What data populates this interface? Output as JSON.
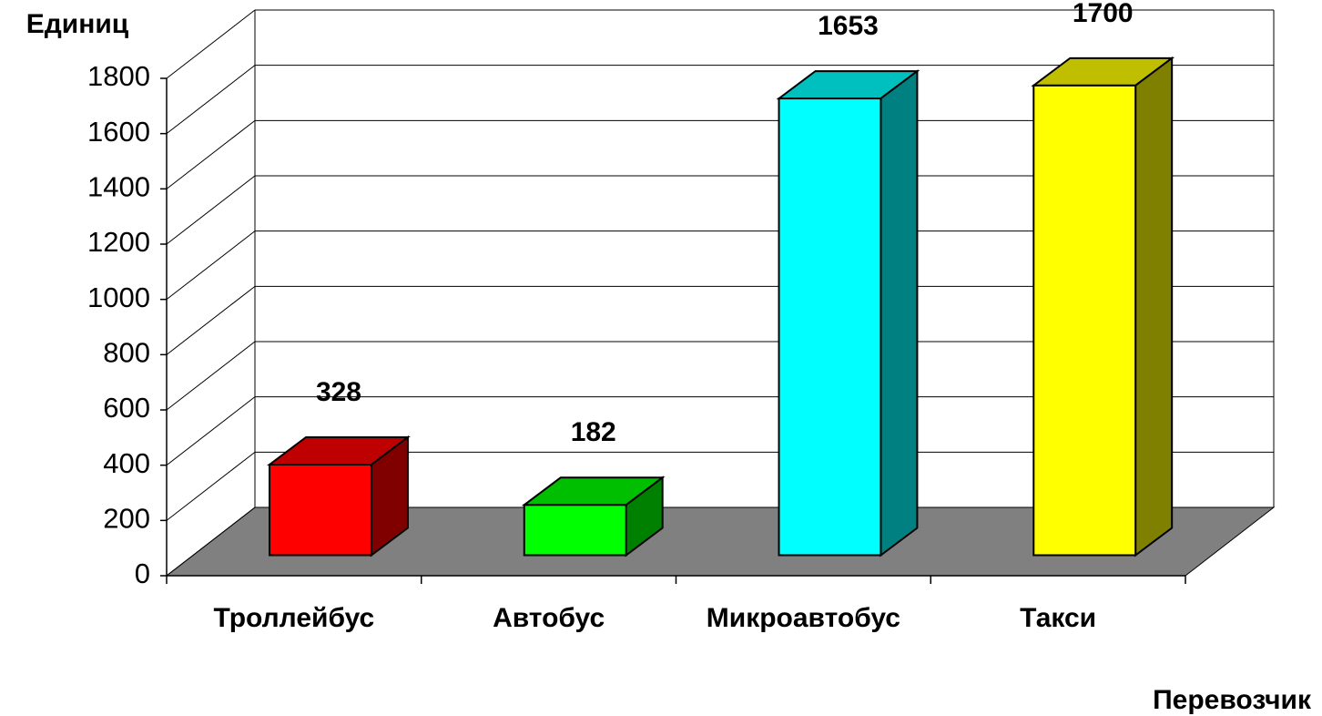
{
  "chart_data": {
    "type": "bar3d",
    "y_label": "Единиц",
    "x_label": "Перевозчик",
    "categories": [
      "Троллейбус",
      "Автобус",
      "Микроавтобус",
      "Такси"
    ],
    "values": [
      328,
      182,
      1653,
      1700
    ],
    "colors": [
      "#ff0000",
      "#00ff00",
      "#00ffff",
      "#ffff00"
    ],
    "ylim": [
      0,
      1800
    ],
    "yticks": [
      0,
      200,
      400,
      600,
      800,
      1000,
      1200,
      1400,
      1600,
      1800
    ],
    "grid": true
  }
}
